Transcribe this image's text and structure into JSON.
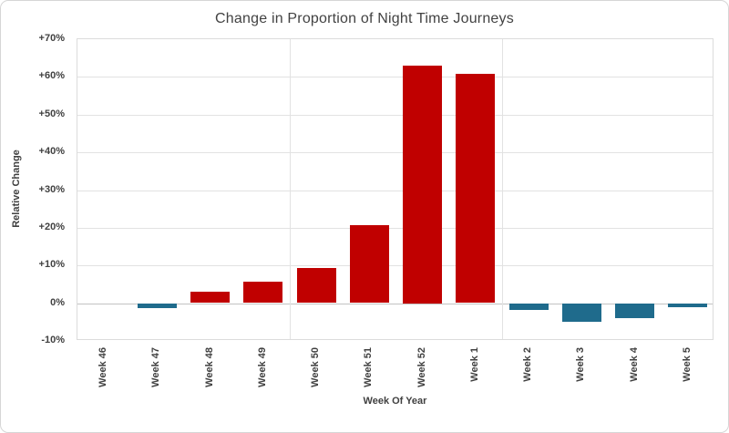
{
  "chart": {
    "title": "Change in Proportion of Night Time Journeys",
    "y_axis_title": "Relative Change",
    "x_axis_title": "Week Of Year",
    "colors": {
      "positive_bar": "#C00000",
      "negative_bar": "#1F6B8C",
      "gridline": "#E2E2E2",
      "zero_line": "#C2C2C2",
      "plot_border": "#DCDCDC",
      "text": "#404040"
    }
  },
  "chart_data": {
    "type": "bar",
    "title": "Change in Proportion of Night Time Journeys",
    "xlabel": "Week Of Year",
    "ylabel": "Relative Change",
    "categories": [
      "Week 46",
      "Week 47",
      "Week 48",
      "Week 49",
      "Week 50",
      "Week 51",
      "Week 52",
      "Week 1",
      "Week 2",
      "Week 3",
      "Week 4",
      "Week 5"
    ],
    "values": [
      0,
      -1.2,
      3,
      5.6,
      9.3,
      20.6,
      63,
      60.7,
      -1.8,
      -4.8,
      -3.8,
      -1
    ],
    "unit": "percent",
    "ylim": [
      -10,
      70
    ],
    "ytick_labels": [
      "+70%",
      "+60%",
      "+50%",
      "+40%",
      "+30%",
      "+20%",
      "+10%",
      "0%",
      "-10%"
    ],
    "ytick_values": [
      70,
      60,
      50,
      40,
      30,
      20,
      10,
      0,
      -10
    ],
    "bar_color_positive": "#C00000",
    "bar_color_negative": "#1F6B8C",
    "grid": "horizontal gridlines every 10%; vertical group separators after Week 49 and Week 1",
    "group_separator_boundaries": [
      4,
      8
    ],
    "legend_position": "none"
  }
}
